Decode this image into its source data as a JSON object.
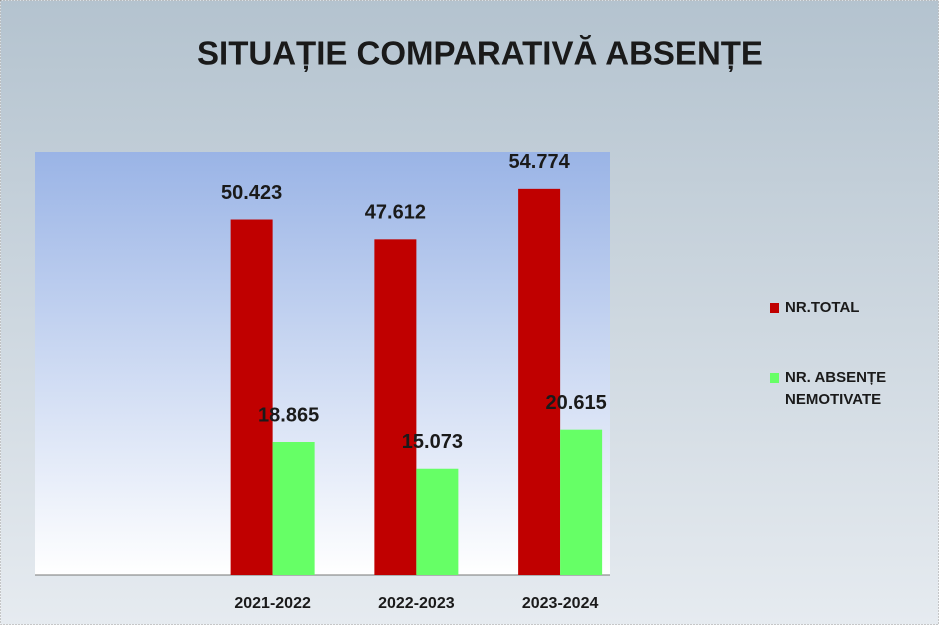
{
  "chart_data": {
    "type": "bar",
    "title": "SITUAȚIE COMPARATIVĂ ABSENȚE",
    "categories": [
      null,
      "2021-2022",
      "2022-2023",
      "2023-2024"
    ],
    "series": [
      {
        "name": "NR.TOTAL",
        "color": "#c00000",
        "values": [
          null,
          50423,
          47612,
          54774
        ],
        "value_labels": [
          null,
          "50.423",
          "47.612",
          "54.774"
        ]
      },
      {
        "name": "NR. ABSENȚE NEMOTIVATE",
        "color": "#66ff66",
        "values": [
          null,
          18865,
          15073,
          20615
        ],
        "value_labels": [
          null,
          "18.865",
          "15.073",
          "20.615"
        ]
      }
    ],
    "ylim": [
      0,
      60000
    ],
    "legend": "right"
  }
}
